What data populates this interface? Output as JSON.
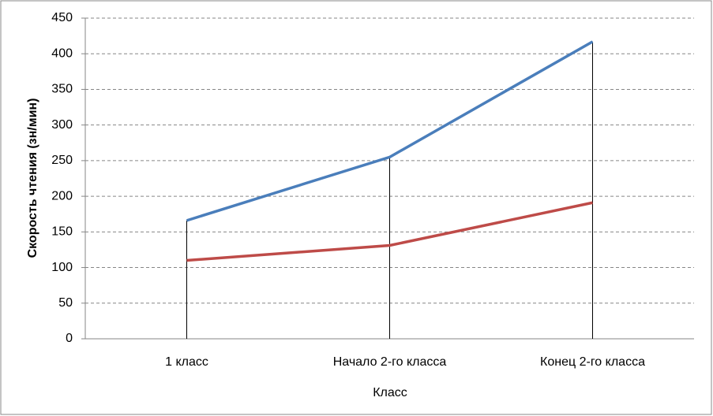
{
  "chart_data": {
    "type": "line",
    "x_label": "Класс",
    "y_label": "Скорость чтения (зн/мин)",
    "categories": [
      "1 класс",
      "Начало 2-го класса",
      "Конец 2-го класса"
    ],
    "series": [
      {
        "color": "#4a7ebb",
        "values": [
          166,
          255,
          417
        ]
      },
      {
        "color": "#be4b48",
        "values": [
          110,
          131,
          191
        ]
      }
    ],
    "ylim": [
      0,
      450
    ],
    "yticks": [
      0,
      50,
      100,
      150,
      200,
      250,
      300,
      350,
      400,
      450
    ],
    "grid": true,
    "drop_lines": true
  }
}
